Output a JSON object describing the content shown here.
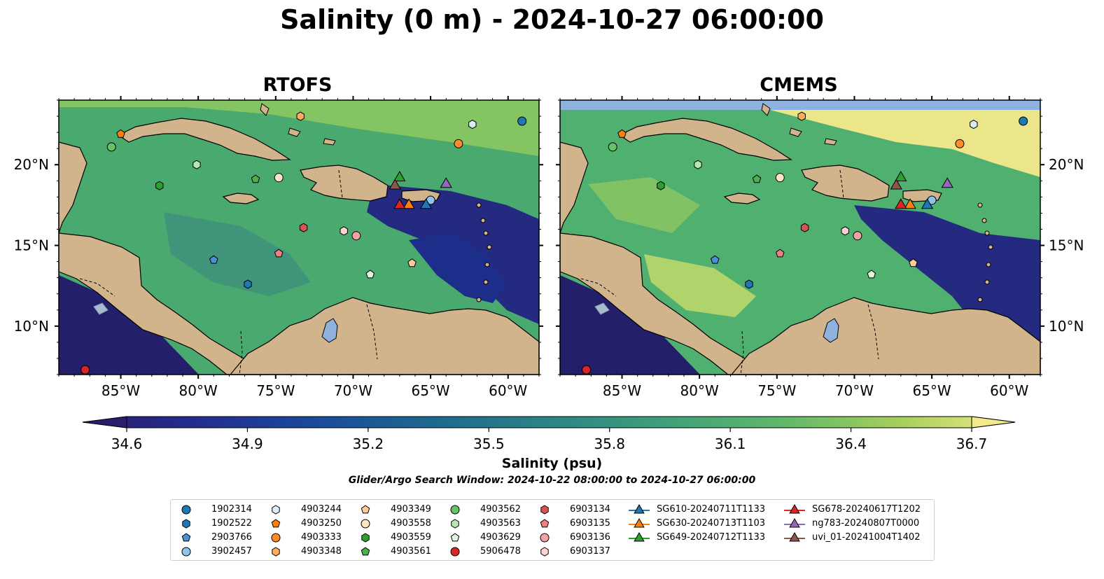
{
  "title": "Salinity (0 m) - 2024-10-27 06:00:00",
  "panels": [
    {
      "title": "RTOFS",
      "ocean_shade": "rtofs"
    },
    {
      "title": "CMEMS",
      "ocean_shade": "cmems"
    }
  ],
  "map": {
    "lon_range": [
      -89,
      -58
    ],
    "lat_range": [
      7,
      24
    ],
    "lon_ticks": [
      "85°W",
      "80°W",
      "75°W",
      "70°W",
      "65°W",
      "60°W"
    ],
    "lon_tick_values": [
      -85,
      -80,
      -75,
      -70,
      -65,
      -60
    ],
    "lat_ticks": [
      "20°N",
      "15°N",
      "10°N"
    ],
    "lat_tick_values": [
      20,
      15,
      10
    ],
    "land_color": "#d2b48c",
    "lake_color": "#8fb1e0"
  },
  "colorbar": {
    "min": 34.6,
    "max": 36.7,
    "ticks": [
      "34.6",
      "34.9",
      "35.2",
      "35.5",
      "35.8",
      "36.1",
      "36.4",
      "36.7"
    ],
    "tick_values": [
      34.6,
      34.9,
      35.2,
      35.5,
      35.8,
      36.1,
      36.4,
      36.7
    ],
    "label": "Salinity (psu)",
    "colormap": "haline",
    "extend": "both"
  },
  "search_window": "Glider/Argo Search Window: 2024-10-22 08:00:00 to 2024-10-27 06:00:00",
  "platforms": [
    {
      "id": "1902314",
      "marker": "circle",
      "color": "#1f77b4",
      "lon": -59.1,
      "lat": 22.7
    },
    {
      "id": "1902522",
      "marker": "hexagon",
      "color": "#1f77b4",
      "lon": -76.8,
      "lat": 12.6
    },
    {
      "id": "2903766",
      "marker": "pentagon",
      "color": "#4a90d9",
      "lon": -79.0,
      "lat": 14.1
    },
    {
      "id": "3902457",
      "marker": "circle",
      "color": "#8fc3ea",
      "lon": -65.0,
      "lat": 17.8
    },
    {
      "id": "4903244",
      "marker": "hexagon",
      "color": "#d9ecf7",
      "lon": -62.3,
      "lat": 22.5
    },
    {
      "id": "4903250",
      "marker": "pentagon",
      "color": "#ff7f0e",
      "lon": -85.0,
      "lat": 21.9
    },
    {
      "id": "4903333",
      "marker": "circle",
      "color": "#ff8c2a",
      "lon": -63.2,
      "lat": 21.3
    },
    {
      "id": "4903348",
      "marker": "hexagon",
      "color": "#ffad5c",
      "lon": -73.4,
      "lat": 23.0
    },
    {
      "id": "4903349",
      "marker": "pentagon",
      "color": "#ffcc99",
      "lon": -66.2,
      "lat": 13.9
    },
    {
      "id": "4903558",
      "marker": "circle",
      "color": "#ffe4c4",
      "lon": -74.8,
      "lat": 19.2
    },
    {
      "id": "4903559",
      "marker": "hexagon",
      "color": "#2ca02c",
      "lon": -82.5,
      "lat": 18.7
    },
    {
      "id": "4903561",
      "marker": "pentagon",
      "color": "#4caf50",
      "lon": -76.3,
      "lat": 19.1
    },
    {
      "id": "4903562",
      "marker": "circle",
      "color": "#66c266",
      "lon": -85.6,
      "lat": 21.1
    },
    {
      "id": "4903563",
      "marker": "hexagon",
      "color": "#b7e8b0",
      "lon": -80.1,
      "lat": 20.0
    },
    {
      "id": "4903629",
      "marker": "pentagon",
      "color": "#e0f5dc",
      "lon": -68.9,
      "lat": 13.2
    },
    {
      "id": "5906478",
      "marker": "circle",
      "color": "#d62728",
      "lon": -87.3,
      "lat": 7.3
    },
    {
      "id": "6903134",
      "marker": "hexagon",
      "color": "#d9534f",
      "lon": -73.2,
      "lat": 16.1
    },
    {
      "id": "6903135",
      "marker": "pentagon",
      "color": "#f08080",
      "lon": -74.8,
      "lat": 14.5
    },
    {
      "id": "6903136",
      "marker": "circle",
      "color": "#f4a3a3",
      "lon": -69.8,
      "lat": 15.6
    },
    {
      "id": "6903137",
      "marker": "hexagon",
      "color": "#ffd1d1",
      "lon": -70.6,
      "lat": 15.9
    }
  ],
  "gliders": [
    {
      "id": "SG610-20240711T1133",
      "color": "#1f77b4",
      "lon": -65.3,
      "lat": 17.4
    },
    {
      "id": "SG630-20240713T1103",
      "color": "#ff7f0e",
      "lon": -66.4,
      "lat": 17.4
    },
    {
      "id": "SG649-20240712T1133",
      "color": "#2ca02c",
      "lon": -67.0,
      "lat": 19.1
    },
    {
      "id": "SG678-20240617T1202",
      "color": "#d62728",
      "lon": -67.0,
      "lat": 17.4
    },
    {
      "id": "ng783-20240807T0000",
      "color": "#9467bd",
      "lon": -64.0,
      "lat": 18.7
    },
    {
      "id": "uvi_01-20241004T1402",
      "color": "#8c564b",
      "lon": -67.3,
      "lat": 18.6
    }
  ]
}
